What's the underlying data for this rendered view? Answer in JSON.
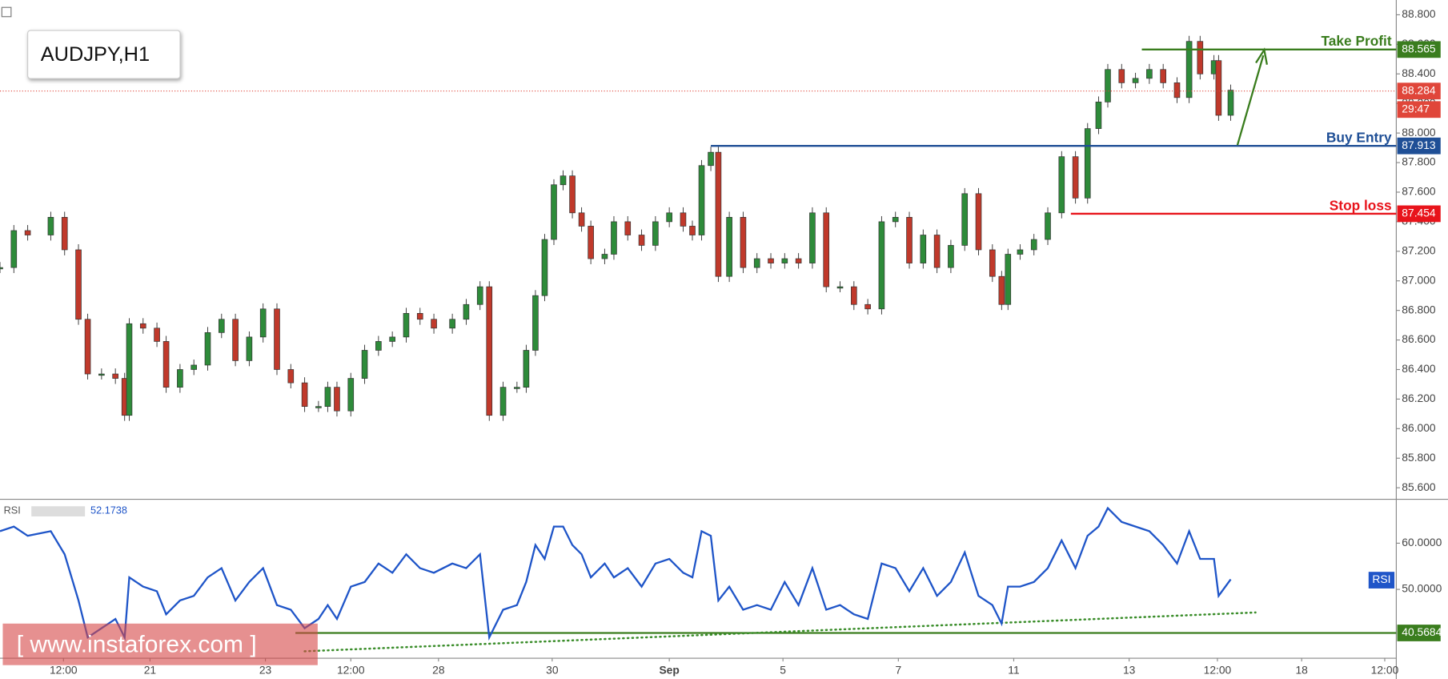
{
  "chart_data": [
    {
      "type": "candlestick",
      "title": "AUDJPY,H1",
      "up_color": "#2e8b3a",
      "down_color": "#c0392b",
      "x": [
        0.0,
        0.24,
        0.48,
        0.88,
        1.12,
        1.36,
        1.52,
        1.76,
        2.0,
        2.16,
        2.24,
        2.48,
        2.72,
        2.88,
        3.12,
        3.36,
        3.6,
        3.84,
        4.08,
        4.32,
        4.56,
        4.8,
        5.04,
        5.28,
        5.52,
        5.68,
        5.84,
        6.08,
        6.32,
        6.56,
        6.8,
        7.04,
        7.28,
        7.52,
        7.84,
        8.08,
        8.32,
        8.48,
        8.72,
        8.96,
        9.12,
        9.28,
        9.44,
        9.6,
        9.76,
        9.92,
        10.08,
        10.24,
        10.48,
        10.64,
        10.88,
        11.12,
        11.36,
        11.6,
        11.84,
        12.0,
        12.16,
        12.32,
        12.45,
        12.64,
        12.88,
        13.12,
        13.36,
        13.6,
        13.84,
        14.08,
        14.32,
        14.56,
        14.8,
        15.04,
        15.28,
        15.52,
        15.76,
        16.0,
        16.24,
        16.48,
        16.72,
        16.96,
        17.2,
        17.36,
        17.47,
        17.68,
        17.92,
        18.16,
        18.4,
        18.64,
        18.85,
        19.04,
        19.2,
        19.44,
        19.68,
        19.92,
        20.16,
        20.4,
        20.61,
        20.8,
        21.04,
        21.12,
        21.33
      ],
      "values": [
        87.09,
        87.34,
        87.31,
        87.43,
        87.21,
        86.74,
        86.37,
        86.37,
        86.34,
        86.09,
        86.71,
        86.68,
        86.59,
        86.28,
        86.4,
        86.43,
        86.65,
        86.74,
        86.46,
        86.62,
        86.81,
        86.4,
        86.31,
        86.15,
        86.15,
        86.28,
        86.12,
        86.34,
        86.53,
        86.59,
        86.62,
        86.78,
        86.74,
        86.68,
        86.74,
        86.84,
        86.96,
        86.09,
        86.28,
        86.28,
        86.53,
        86.9,
        87.28,
        87.65,
        87.71,
        87.46,
        87.37,
        87.15,
        87.18,
        87.4,
        87.31,
        87.24,
        87.4,
        87.46,
        87.37,
        87.31,
        87.78,
        87.87,
        87.03,
        87.43,
        87.09,
        87.15,
        87.12,
        87.15,
        87.12,
        87.46,
        86.96,
        86.96,
        86.84,
        86.81,
        87.4,
        87.43,
        87.12,
        87.31,
        87.09,
        87.24,
        87.59,
        87.21,
        87.03,
        86.84,
        87.18,
        87.21,
        87.28,
        87.46,
        87.84,
        87.56,
        88.03,
        88.21,
        88.43,
        88.34,
        88.37,
        88.43,
        88.34,
        88.24,
        88.62,
        88.4,
        88.49,
        88.12,
        88.29
      ],
      "xlim": [
        0,
        24.2
      ],
      "xticks": [
        {
          "value": 1.1,
          "label": "12:00"
        },
        {
          "value": 2.6,
          "label": "21"
        },
        {
          "value": 4.6,
          "label": "23"
        },
        {
          "value": 6.08,
          "label": "12:00"
        },
        {
          "value": 7.6,
          "label": "28"
        },
        {
          "value": 9.57,
          "label": "30"
        },
        {
          "value": 11.6,
          "label": "Sep"
        },
        {
          "value": 13.57,
          "label": "5"
        },
        {
          "value": 15.57,
          "label": "7"
        },
        {
          "value": 17.57,
          "label": "11"
        },
        {
          "value": 19.57,
          "label": "13"
        },
        {
          "value": 21.1,
          "label": "12:00"
        },
        {
          "value": 22.56,
          "label": "18"
        },
        {
          "value": 24.0,
          "label": "12:00"
        }
      ],
      "ylim": [
        85.525,
        88.9
      ],
      "yticks": [
        {
          "value": 85.6,
          "label": "85.600"
        },
        {
          "value": 85.8,
          "label": "85.800"
        },
        {
          "value": 86.0,
          "label": "86.000"
        },
        {
          "value": 86.2,
          "label": "86.200"
        },
        {
          "value": 86.4,
          "label": "86.400"
        },
        {
          "value": 86.6,
          "label": "86.600"
        },
        {
          "value": 86.8,
          "label": "86.800"
        },
        {
          "value": 87.0,
          "label": "87.000"
        },
        {
          "value": 87.2,
          "label": "87.200"
        },
        {
          "value": 87.4,
          "label": "87.400"
        },
        {
          "value": 87.6,
          "label": "87.600"
        },
        {
          "value": 87.8,
          "label": "87.800"
        },
        {
          "value": 88.0,
          "label": "88.000"
        },
        {
          "value": 88.2,
          "label": "88.200"
        },
        {
          "value": 88.4,
          "label": "88.400"
        },
        {
          "value": 88.6,
          "label": "88.600"
        },
        {
          "value": 88.8,
          "label": "88.800"
        }
      ],
      "levels": [
        {
          "name": "Take Profit",
          "value": 88.565,
          "color": "#3a7d1e",
          "x_start": 19.79
        },
        {
          "name": "Buy Entry",
          "value": 87.913,
          "color": "#1f4f96",
          "x_start": 12.32
        },
        {
          "name": "Stop loss",
          "value": 87.454,
          "color": "#e8141b",
          "x_start": 18.56
        }
      ],
      "last_price": {
        "value": 88.284,
        "countdown": "29:47",
        "color": "#e0463a"
      }
    },
    {
      "type": "line",
      "title": "RSI",
      "value_label": "52.1738",
      "series": [
        {
          "name": "RSI",
          "color": "#1f55c8",
          "values": [
            62.6,
            63.6,
            61.6,
            62.6,
            57.6,
            47.6,
            39.6,
            41.6,
            43.6,
            39.6,
            52.6,
            50.6,
            49.6,
            44.6,
            47.6,
            48.6,
            52.6,
            54.6,
            47.6,
            51.6,
            54.6,
            46.6,
            45.6,
            41.6,
            43.6,
            46.6,
            43.6,
            50.6,
            51.6,
            55.6,
            53.6,
            57.6,
            54.6,
            53.6,
            55.6,
            54.6,
            57.6,
            39.6,
            45.6,
            46.6,
            51.6,
            59.6,
            56.6,
            63.6,
            63.6,
            59.6,
            57.6,
            52.6,
            55.6,
            52.6,
            54.6,
            50.6,
            55.6,
            56.6,
            53.6,
            52.6,
            62.6,
            61.6,
            47.6,
            50.6,
            45.6,
            46.6,
            45.6,
            51.6,
            46.6,
            54.6,
            45.6,
            46.6,
            44.6,
            43.6,
            55.6,
            54.6,
            49.6,
            54.6,
            48.6,
            51.6,
            58.0,
            48.6,
            46.6,
            42.6,
            50.6,
            50.6,
            51.6,
            54.6,
            60.6,
            54.6,
            61.6,
            63.6,
            67.6,
            64.6,
            63.6,
            62.6,
            59.6,
            55.6,
            62.6,
            56.6,
            56.6,
            48.6,
            52.1738
          ]
        }
      ],
      "ylim": [
        35.2,
        69.4
      ],
      "yticks": [
        {
          "value": 50,
          "label": "50.0000"
        },
        {
          "value": 60,
          "label": "60.0000"
        }
      ],
      "level": {
        "value": 40.5684,
        "color": "#3a7d1e",
        "x_start": 5.12
      },
      "trendline": {
        "x": [
          5.28,
          21.76
        ],
        "values": [
          36.6,
          45.0
        ],
        "color": "#3a8d2a"
      }
    }
  ],
  "watermark": "[ www.instaforex.com ]"
}
